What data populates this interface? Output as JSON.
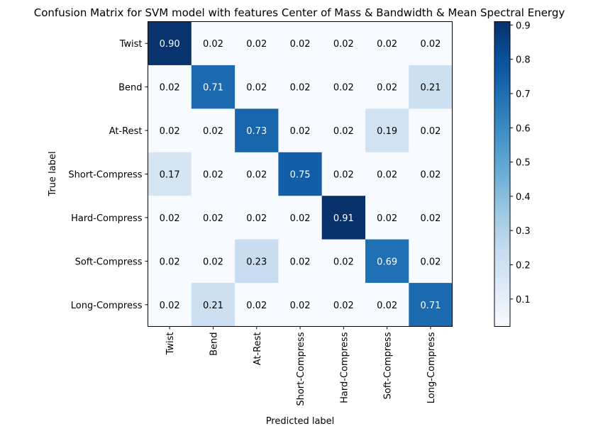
{
  "chart_data": {
    "type": "heatmap",
    "title": "Confusion Matrix for SVM model with features Center of Mass & Bandwidth & Mean Spectral Energy",
    "xlabel": "Predicted label",
    "ylabel": "True label",
    "x_categories": [
      "Twist",
      "Bend",
      "At-Rest",
      "Short-Compress",
      "Hard-Compress",
      "Soft-Compress",
      "Long-Compress"
    ],
    "y_categories": [
      "Twist",
      "Bend",
      "At-Rest",
      "Short-Compress",
      "Hard-Compress",
      "Soft-Compress",
      "Long-Compress"
    ],
    "values": [
      [
        0.9,
        0.02,
        0.02,
        0.02,
        0.02,
        0.02,
        0.02
      ],
      [
        0.02,
        0.71,
        0.02,
        0.02,
        0.02,
        0.02,
        0.21
      ],
      [
        0.02,
        0.02,
        0.73,
        0.02,
        0.02,
        0.19,
        0.02
      ],
      [
        0.17,
        0.02,
        0.02,
        0.75,
        0.02,
        0.02,
        0.02
      ],
      [
        0.02,
        0.02,
        0.02,
        0.02,
        0.91,
        0.02,
        0.02
      ],
      [
        0.02,
        0.02,
        0.23,
        0.02,
        0.02,
        0.69,
        0.02
      ],
      [
        0.02,
        0.21,
        0.02,
        0.02,
        0.02,
        0.02,
        0.71
      ]
    ],
    "colormap": "Blues",
    "colorbar": {
      "range": [
        0.02,
        0.91
      ],
      "ticks": [
        0.1,
        0.2,
        0.3,
        0.4,
        0.5,
        0.6,
        0.7,
        0.8,
        0.9
      ],
      "tick_labels": [
        "0.1",
        "0.2",
        "0.3",
        "0.4",
        "0.5",
        "0.6",
        "0.7",
        "0.8",
        "0.9"
      ]
    },
    "text_threshold": 0.465,
    "grid": false
  }
}
